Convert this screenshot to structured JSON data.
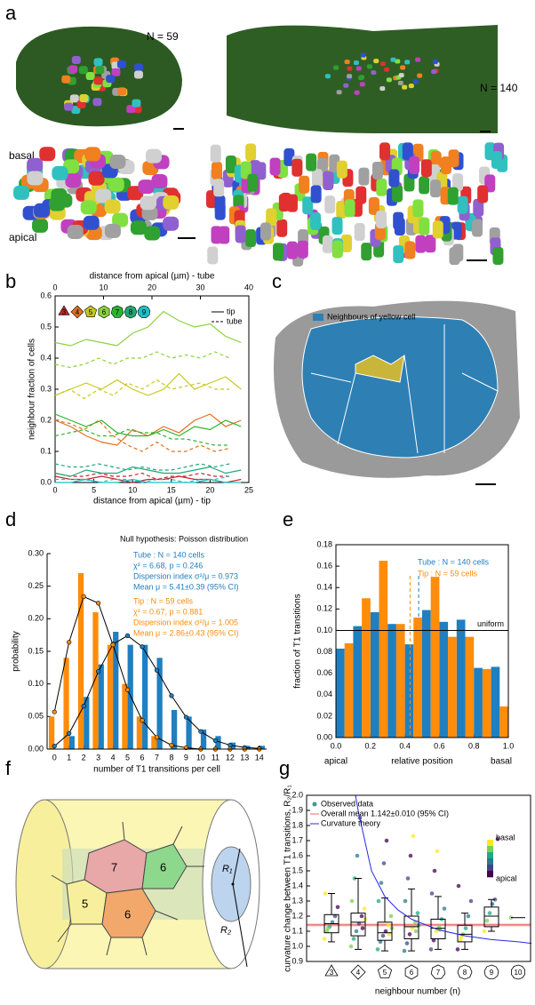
{
  "panel_labels": [
    "a",
    "b",
    "c",
    "d",
    "e",
    "f",
    "g"
  ],
  "panel_a": {
    "tip_label": "N = 59",
    "tube_label": "N = 140",
    "basal": "basal",
    "apical": "apical"
  },
  "panel_c": {
    "legend": "Neighbours of yellow cell"
  },
  "panel_f": {
    "cells": [
      "7",
      "6",
      "5",
      "6"
    ],
    "r1": "R₁",
    "r2": "R₂"
  },
  "chart_data": [
    {
      "type": "line",
      "xlabel": "distance from apical (µm) - tip",
      "x2label": "distance from apical (µm) - tube",
      "ylabel": "neighbour fraction of cells",
      "xlim": [
        0,
        25
      ],
      "xticks": [
        0,
        5,
        10,
        15,
        20,
        25
      ],
      "x2lim": [
        0,
        40
      ],
      "x2ticks": [
        0,
        10,
        20,
        30,
        40
      ],
      "ylim": [
        0,
        0.6
      ],
      "yticks": [
        {
          "value": 0,
          "label": "0.0"
        },
        0.1,
        0.2,
        0.3,
        0.4,
        0.5,
        0.6
      ],
      "x": [
        0,
        2,
        4,
        6,
        8,
        10,
        12,
        14,
        16,
        18,
        20,
        22,
        24
      ],
      "x2": [
        0,
        3,
        6,
        9,
        12,
        15,
        18,
        21,
        24,
        27,
        30,
        33,
        36
      ],
      "styles": [
        {
          "name": "tip",
          "dashed": false
        },
        {
          "name": "tube",
          "dashed": true
        }
      ],
      "series": [
        {
          "name": "3",
          "color": "#c0282c",
          "tip_values": [
            0.02,
            0.01,
            0.01,
            0.02,
            0.01,
            0.0,
            0.01,
            0.01,
            0.02,
            0.01,
            0.01,
            0.0,
            0.01
          ],
          "tube_values": [
            0.03,
            0.02,
            0.02,
            0.03,
            0.02,
            0.02,
            0.03,
            0.01,
            0.02,
            0.02,
            0.03,
            0.02,
            0.02
          ]
        },
        {
          "name": "4",
          "color": "#e0701e",
          "tip_values": [
            0.2,
            0.18,
            0.15,
            0.13,
            0.12,
            0.17,
            0.15,
            0.18,
            0.16,
            0.2,
            0.22,
            0.18,
            0.2
          ],
          "tube_values": [
            0.2,
            0.19,
            0.17,
            0.2,
            0.15,
            0.12,
            0.1,
            0.13,
            0.1,
            0.1,
            0.12,
            0.1,
            0.11
          ]
        },
        {
          "name": "5",
          "color": "#c8c81e",
          "tip_values": [
            0.28,
            0.3,
            0.32,
            0.3,
            0.33,
            0.3,
            0.28,
            0.3,
            0.35,
            0.3,
            0.32,
            0.34,
            0.3
          ],
          "tube_values": [
            0.28,
            0.3,
            0.27,
            0.3,
            0.28,
            0.32,
            0.3,
            0.33,
            0.3,
            0.31,
            0.32,
            0.3,
            0.3
          ]
        },
        {
          "name": "6",
          "color": "#8cd23c",
          "tip_values": [
            0.45,
            0.44,
            0.46,
            0.45,
            0.44,
            0.48,
            0.5,
            0.55,
            0.52,
            0.5,
            0.51,
            0.47,
            0.45
          ],
          "tube_values": [
            0.38,
            0.37,
            0.38,
            0.4,
            0.38,
            0.4,
            0.4,
            0.42,
            0.4,
            0.41,
            0.4,
            0.42,
            0.4
          ]
        },
        {
          "name": "7",
          "color": "#2cb42c",
          "tip_values": [
            0.22,
            0.2,
            0.18,
            0.2,
            0.16,
            0.15,
            0.15,
            0.17,
            0.15,
            0.18,
            0.17,
            0.2,
            0.18
          ],
          "tube_values": [
            0.15,
            0.16,
            0.17,
            0.15,
            0.15,
            0.17,
            0.16,
            0.16,
            0.14,
            0.14,
            0.13,
            0.12,
            0.12
          ]
        },
        {
          "name": "8",
          "color": "#1ea878",
          "tip_values": [
            0.03,
            0.02,
            0.04,
            0.03,
            0.03,
            0.05,
            0.04,
            0.03,
            0.03,
            0.04,
            0.05,
            0.03,
            0.04
          ],
          "tube_values": [
            0.06,
            0.05,
            0.05,
            0.06,
            0.05,
            0.04,
            0.05,
            0.04,
            0.04,
            0.05,
            0.06,
            0.05,
            0.06
          ]
        },
        {
          "name": "9",
          "color": "#1ec0c8",
          "tip_values": [
            0.0,
            0.0,
            0.01,
            0.0,
            0.0,
            0.01,
            0.0,
            0.0,
            0.0,
            0.0,
            0.01,
            0.0,
            0.0
          ],
          "tube_values": [
            0.01,
            0.01,
            0.01,
            0.0,
            0.01,
            0.01,
            0.0,
            0.01,
            0.01,
            0.0,
            0.01,
            0.01,
            0.02
          ]
        }
      ]
    },
    {
      "type": "bar",
      "title": "Null hypothesis: Poisson distribution",
      "xlabel": "number of T1 transitions per cell",
      "ylabel": "probability",
      "categories": [
        "0",
        "1",
        "2",
        "3",
        "4",
        "5",
        "6",
        "7",
        "8",
        "9",
        "10",
        "11",
        "12",
        "13",
        "14"
      ],
      "ylim": [
        0,
        0.3
      ],
      "yticks": [
        {
          "value": 0,
          "label": "0.00"
        },
        0.05,
        {
          "value": 0.1,
          "label": "0.10"
        },
        0.15,
        {
          "value": 0.2,
          "label": "0.20"
        },
        0.25,
        {
          "value": 0.3,
          "label": "0.30"
        }
      ],
      "series": [
        {
          "name": "Tube : N = 140 cells",
          "color": "#1f7fc0",
          "values": [
            0,
            0.02,
            0.08,
            0.13,
            0.18,
            0.16,
            0.16,
            0.14,
            0.06,
            0.05,
            0.03,
            0.02,
            0.01,
            0.005,
            0.005
          ],
          "fit": [
            0.0045,
            0.024,
            0.066,
            0.119,
            0.161,
            0.174,
            0.157,
            0.121,
            0.082,
            0.049,
            0.027,
            0.013,
            0.006,
            0.0025,
            0.001
          ],
          "stats": [
            "χ² = 6.68, p = 0.246",
            "Dispersion index σ²/μ = 0.973",
            "Mean μ = 5.41±0.39 (95% CI)"
          ]
        },
        {
          "name": "Tip : N = 59 cells",
          "color": "#ff8c0a",
          "values": [
            0.05,
            0.14,
            0.27,
            0.21,
            0.16,
            0.1,
            0.05,
            0.02,
            0,
            0,
            0,
            0,
            0,
            0,
            0
          ],
          "fit": [
            0.057,
            0.164,
            0.234,
            0.224,
            0.16,
            0.091,
            0.044,
            0.018,
            0.006,
            0.002,
            0,
            0,
            0,
            0,
            0
          ],
          "stats": [
            "χ² = 0.67, p = 0.881",
            "Dispersion index σ²/μ = 1.005",
            "Mean μ = 2.86±0.43 (95% CI)"
          ]
        }
      ]
    },
    {
      "type": "histogram",
      "xlabel": "relative position",
      "x_end_labels": [
        "apical",
        "basal"
      ],
      "ylabel": "fraction of T1 transitions",
      "bins": [
        0,
        0.1,
        0.2,
        0.3,
        0.4,
        0.5,
        0.6,
        0.7,
        0.8,
        0.9,
        1
      ],
      "xlim": [
        0,
        1
      ],
      "xticks": [
        {
          "value": 0,
          "label": "0.0"
        },
        0.2,
        0.4,
        0.6,
        0.8,
        {
          "value": 1,
          "label": "1.0"
        }
      ],
      "ylim": [
        0,
        0.18
      ],
      "yticks": [
        {
          "value": 0,
          "label": "0.00"
        },
        0.02,
        0.04,
        0.06,
        0.08,
        {
          "value": 0.1,
          "label": "0.10"
        },
        0.12,
        0.14,
        0.16,
        0.18
      ],
      "uniform": {
        "value": 0.1,
        "label": "uniform"
      },
      "series": [
        {
          "name": "Tube : N = 140 cells",
          "color": "#1f7fc0",
          "mean": 0.48,
          "values": [
            0.083,
            0.104,
            0.117,
            0.106,
            0.087,
            0.119,
            0.108,
            0.11,
            0.065,
            0.066
          ]
        },
        {
          "name": "Tip : N = 59 cells",
          "color": "#ff8c0a",
          "mean": 0.43,
          "values": [
            0.088,
            0.13,
            0.165,
            0.106,
            0.112,
            0.15,
            0.094,
            0.094,
            0.064,
            0.029
          ]
        }
      ]
    },
    {
      "type": "box",
      "xlabel": "neighbour number (n)",
      "ylabel": "curvature change between T1 transitions, R₂/R₁",
      "categories": [
        "3",
        "4",
        "5",
        "6",
        "7",
        "8",
        "9",
        "10"
      ],
      "ylim": [
        0.9,
        2.0
      ],
      "yticks": [
        0.9,
        {
          "value": 1,
          "label": "1.0"
        },
        1.1,
        1.2,
        1.3,
        1.4,
        1.5,
        1.6,
        1.7,
        1.8,
        1.9,
        {
          "value": 2,
          "label": "2.0"
        }
      ],
      "q1": [
        1.09,
        1.07,
        1.04,
        1.05,
        1.05,
        1.03,
        1.13,
        null
      ],
      "median": [
        1.15,
        1.16,
        1.09,
        1.13,
        1.12,
        1.08,
        1.2,
        1.19
      ],
      "q3": [
        1.21,
        1.22,
        1.16,
        1.2,
        1.18,
        1.14,
        1.26,
        null
      ],
      "whisker_low": [
        1.03,
        0.98,
        0.97,
        0.97,
        0.98,
        0.98,
        1.1,
        null
      ],
      "whisker_high": [
        1.35,
        1.45,
        1.32,
        1.38,
        1.33,
        1.22,
        1.31,
        null
      ],
      "points_name": "Observed data",
      "points_color": "#3c9a8c",
      "points": [
        [
          1.05,
          1.1,
          1.13,
          1.16,
          1.2,
          1.26,
          1.35,
          1.12
        ],
        [
          1.0,
          1.05,
          1.1,
          1.15,
          1.2,
          1.25,
          1.3,
          1.45,
          1.6,
          1.85,
          1.12,
          1.18
        ],
        [
          0.98,
          1.03,
          1.07,
          1.1,
          1.14,
          1.2,
          1.3,
          1.42,
          1.55,
          1.7,
          1.08,
          1.12
        ],
        [
          0.97,
          1.02,
          1.08,
          1.12,
          1.16,
          1.22,
          1.3,
          1.45,
          1.6,
          1.73,
          1.1,
          1.14
        ],
        [
          0.98,
          1.04,
          1.1,
          1.13,
          1.18,
          1.25,
          1.35,
          1.5,
          1.63,
          1.11
        ],
        [
          0.98,
          1.04,
          1.08,
          1.12,
          1.2,
          1.3,
          1.4,
          1.06
        ],
        [
          1.1,
          1.17,
          1.22,
          1.28,
          1.31,
          1.71
        ],
        [
          1.19
        ]
      ],
      "mean": {
        "name": "Overall mean 1.142±0.010 (95% CI)",
        "value": 1.142,
        "ci": 0.01,
        "color": "#f06464"
      },
      "theory": {
        "name": "Curvature theory",
        "color": "#2828e6",
        "x": [
          3.9,
          4,
          4.5,
          5,
          5.5,
          6,
          7,
          8,
          9,
          10,
          10.5
        ],
        "values": [
          2.0,
          1.9,
          1.5,
          1.33,
          1.24,
          1.18,
          1.11,
          1.07,
          1.045,
          1.03,
          1.02
        ]
      },
      "colorbar": {
        "labels": [
          "basal",
          "apical"
        ],
        "colors": [
          "#fde725",
          "#7ad151",
          "#22a884",
          "#2a788e",
          "#414487",
          "#440154"
        ]
      }
    }
  ]
}
